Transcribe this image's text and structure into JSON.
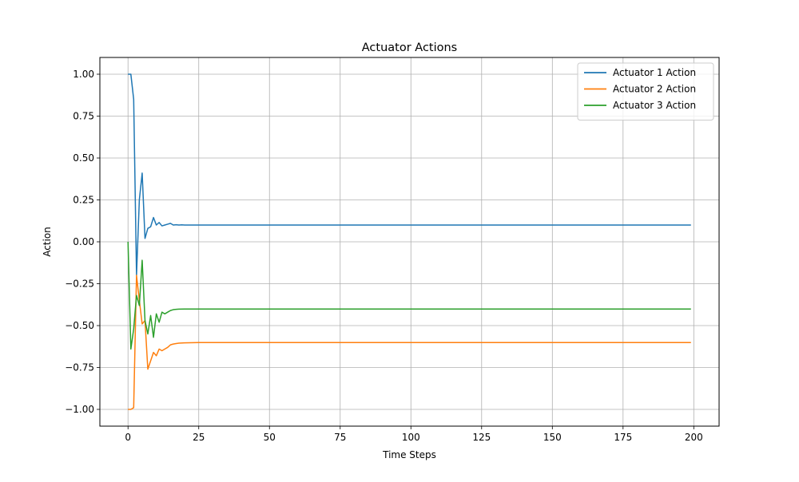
{
  "chart_data": {
    "type": "line",
    "title": "Actuator Actions",
    "xlabel": "Time Steps",
    "ylabel": "Action",
    "xlim": [
      -9.95,
      208.95
    ],
    "ylim": [
      -1.1,
      1.1
    ],
    "xticks": [
      0,
      25,
      50,
      75,
      100,
      125,
      150,
      175,
      200
    ],
    "xtick_labels": [
      "0",
      "25",
      "50",
      "75",
      "100",
      "125",
      "150",
      "175",
      "200"
    ],
    "yticks": [
      -1.0,
      -0.75,
      -0.5,
      -0.25,
      0.0,
      0.25,
      0.5,
      0.75,
      1.0
    ],
    "ytick_labels": [
      "−1.00",
      "−0.75",
      "−0.50",
      "−0.25",
      "0.00",
      "0.25",
      "0.50",
      "0.75",
      "1.00"
    ],
    "grid": true,
    "legend_position": "top-right",
    "series": [
      {
        "name": "Actuator 1 Action",
        "color": "#1f77b4",
        "points": [
          [
            0,
            1.0
          ],
          [
            1,
            1.0
          ],
          [
            2,
            0.85
          ],
          [
            3,
            -0.2
          ],
          [
            4,
            0.25
          ],
          [
            5,
            0.41
          ],
          [
            6,
            0.02
          ],
          [
            7,
            0.08
          ],
          [
            8,
            0.09
          ],
          [
            9,
            0.145
          ],
          [
            10,
            0.1
          ],
          [
            11,
            0.115
          ],
          [
            12,
            0.095
          ],
          [
            13,
            0.1
          ],
          [
            14,
            0.105
          ],
          [
            15,
            0.11
          ],
          [
            16,
            0.1
          ],
          [
            17,
            0.102
          ],
          [
            18,
            0.1
          ],
          [
            19,
            0.101
          ],
          [
            20,
            0.1
          ],
          [
            199,
            0.1
          ]
        ]
      },
      {
        "name": "Actuator 2 Action",
        "color": "#ff7f0e",
        "points": [
          [
            0,
            -1.0
          ],
          [
            1,
            -1.0
          ],
          [
            2,
            -0.99
          ],
          [
            3,
            -0.2
          ],
          [
            4,
            -0.35
          ],
          [
            5,
            -0.49
          ],
          [
            6,
            -0.47
          ],
          [
            7,
            -0.76
          ],
          [
            8,
            -0.71
          ],
          [
            9,
            -0.66
          ],
          [
            10,
            -0.68
          ],
          [
            11,
            -0.64
          ],
          [
            12,
            -0.65
          ],
          [
            13,
            -0.64
          ],
          [
            14,
            -0.63
          ],
          [
            15,
            -0.615
          ],
          [
            16,
            -0.61
          ],
          [
            17,
            -0.607
          ],
          [
            18,
            -0.605
          ],
          [
            20,
            -0.603
          ],
          [
            25,
            -0.601
          ],
          [
            199,
            -0.601
          ]
        ]
      },
      {
        "name": "Actuator 3 Action",
        "color": "#2ca02c",
        "points": [
          [
            0,
            0.0
          ],
          [
            1,
            -0.64
          ],
          [
            2,
            -0.52
          ],
          [
            3,
            -0.32
          ],
          [
            4,
            -0.38
          ],
          [
            5,
            -0.11
          ],
          [
            6,
            -0.47
          ],
          [
            7,
            -0.55
          ],
          [
            8,
            -0.44
          ],
          [
            9,
            -0.57
          ],
          [
            10,
            -0.43
          ],
          [
            11,
            -0.48
          ],
          [
            12,
            -0.42
          ],
          [
            13,
            -0.43
          ],
          [
            14,
            -0.42
          ],
          [
            15,
            -0.41
          ],
          [
            16,
            -0.405
          ],
          [
            17,
            -0.403
          ],
          [
            18,
            -0.402
          ],
          [
            20,
            -0.401
          ],
          [
            199,
            -0.401
          ]
        ]
      }
    ]
  }
}
